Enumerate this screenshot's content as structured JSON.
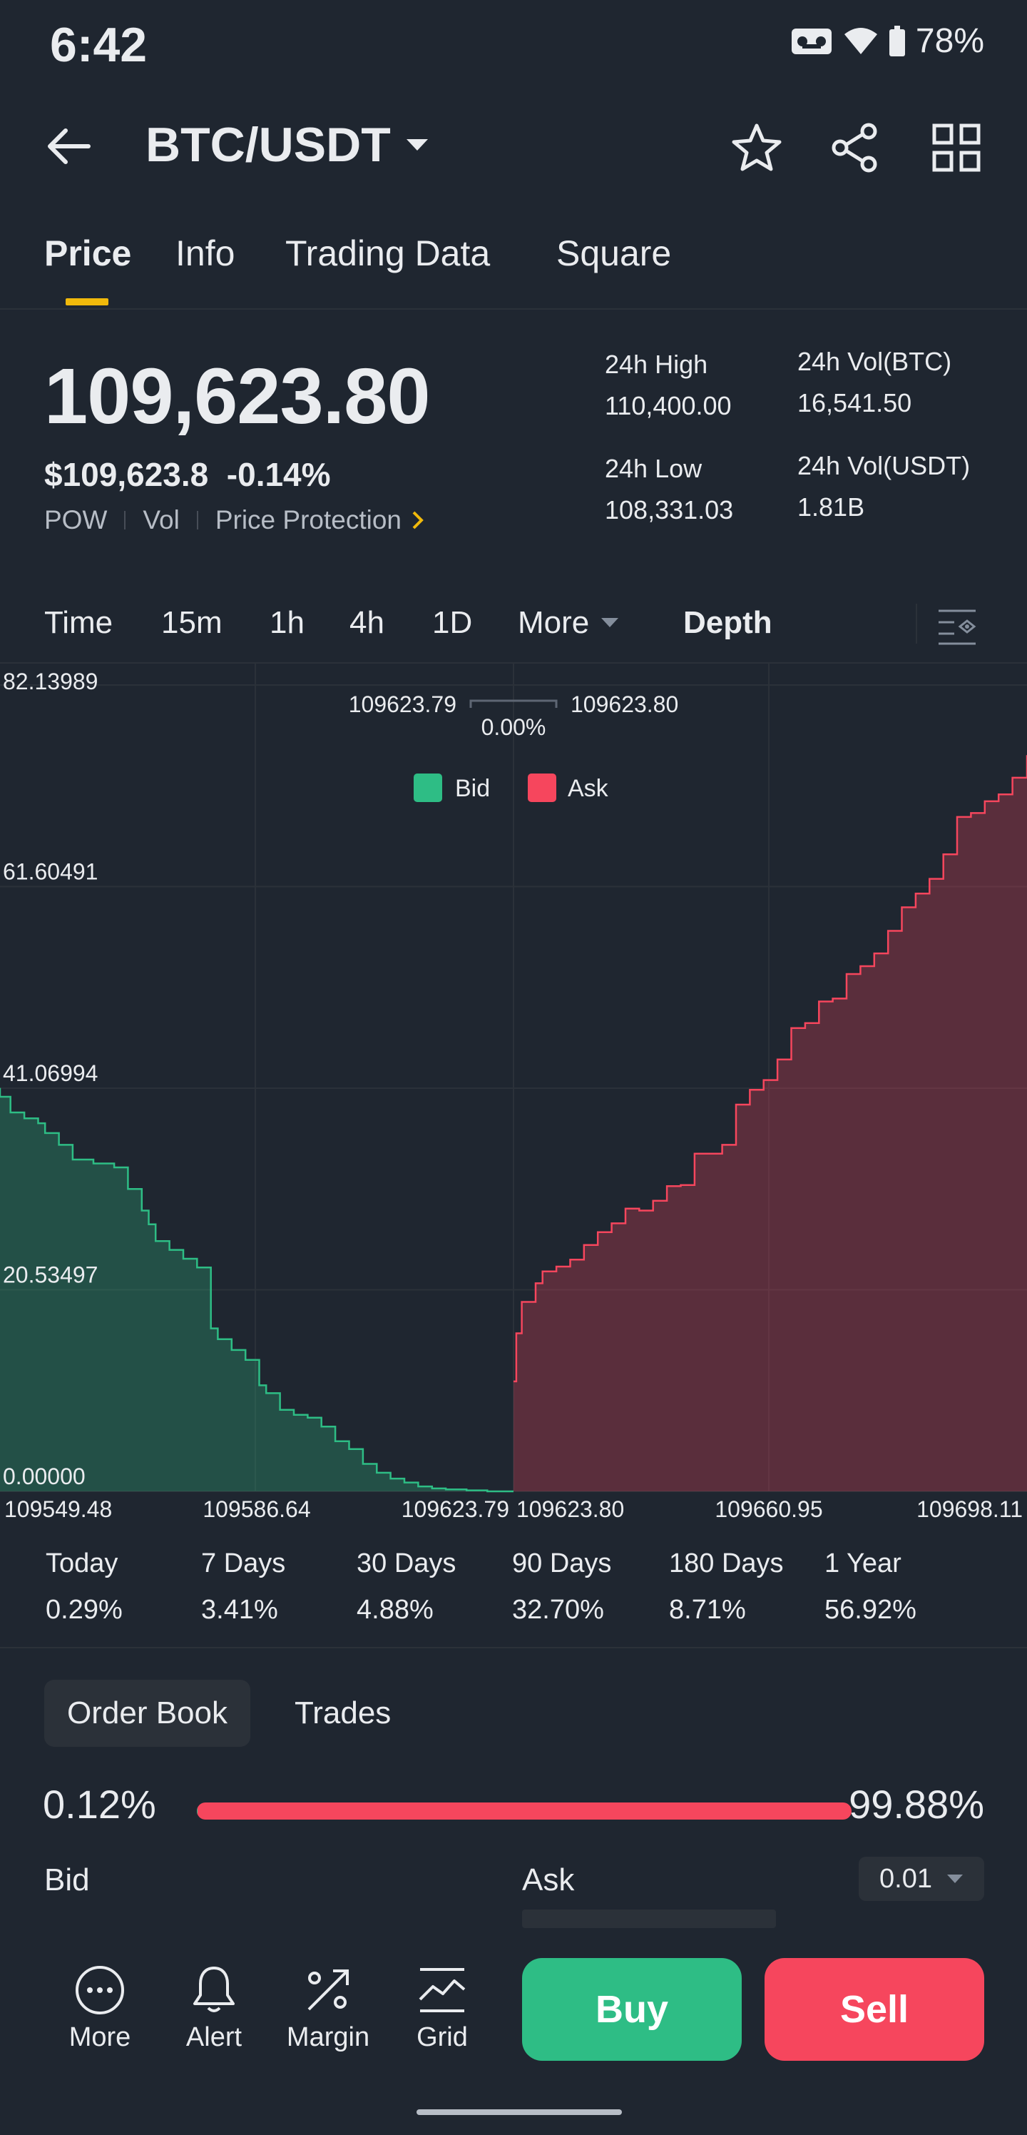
{
  "status_bar": {
    "time": "6:42",
    "battery": "78%"
  },
  "header": {
    "pair": "BTC/USDT"
  },
  "tabs": [
    {
      "label": "Price"
    },
    {
      "label": "Info"
    },
    {
      "label": "Trading Data"
    },
    {
      "label": "Square"
    }
  ],
  "price": {
    "last": "109,623.80",
    "usd": "$109,623.8",
    "change": "-0.14%",
    "tags": [
      "POW",
      "Vol",
      "Price Protection"
    ]
  },
  "stats": {
    "high_label": "24h High",
    "high_value": "110,400.00",
    "low_label": "24h Low",
    "low_value": "108,331.03",
    "vol_btc_label": "24h Vol(BTC)",
    "vol_btc_value": "16,541.50",
    "vol_usdt_label": "24h Vol(USDT)",
    "vol_usdt_value": "1.81B"
  },
  "time_row": {
    "time": "Time",
    "m15": "15m",
    "h1": "1h",
    "h4": "4h",
    "d1": "1D",
    "more": "More",
    "depth": "Depth"
  },
  "chart_data": {
    "type": "area",
    "title": "",
    "y_ticks": [
      "82.13989",
      "61.60491",
      "41.06994",
      "20.53497",
      "0.00000"
    ],
    "ylim": [
      0,
      82.13989
    ],
    "x_ticks": [
      "109549.48",
      "109586.64",
      "109623.79",
      "109623.80",
      "109660.95",
      "109698.11"
    ],
    "mid": {
      "bid_price": "109623.79",
      "spread": "0.00%",
      "ask_price": "109623.80"
    },
    "legend": [
      "Bid",
      "Ask"
    ],
    "colors": {
      "bid": "#2ebd85",
      "ask": "#f6465d"
    },
    "series": [
      {
        "name": "Bid",
        "x": [
          109549.48,
          109551,
          109553,
          109555,
          109556,
          109558,
          109560,
          109563,
          109566,
          109568,
          109570,
          109571,
          109572,
          109574,
          109576,
          109578,
          109580,
          109581,
          109583,
          109585,
          109587,
          109588,
          109590,
          109592,
          109594,
          109596,
          109598,
          109600,
          109602,
          109604,
          109606,
          109608,
          109610,
          109612,
          109614,
          109617,
          109620,
          109623.79
        ],
        "y": [
          41.1,
          40.2,
          38.6,
          38.0,
          37.5,
          36.5,
          35.3,
          33.8,
          33.4,
          33.0,
          30.8,
          28.6,
          27.2,
          25.5,
          24.6,
          23.7,
          22.8,
          16.6,
          15.5,
          14.4,
          13.4,
          10.8,
          10.0,
          8.3,
          7.8,
          7.5,
          6.6,
          5.1,
          4.3,
          2.8,
          1.9,
          1.3,
          0.9,
          0.5,
          0.3,
          0.2,
          0.1,
          0.0
        ]
      },
      {
        "name": "Ask",
        "x": [
          109623.8,
          109624.2,
          109625,
          109627,
          109628,
          109630,
          109632,
          109634,
          109636,
          109638,
          109640,
          109642,
          109644,
          109646,
          109648,
          109650,
          109652,
          109654,
          109656,
          109658,
          109660,
          109662,
          109664,
          109666,
          109668,
          109670,
          109672,
          109674,
          109676,
          109678,
          109680,
          109682,
          109684,
          109686,
          109688,
          109690,
          109692,
          109694,
          109696,
          109698.11
        ],
        "y": [
          11.2,
          16.1,
          19.3,
          21.2,
          22.4,
          22.9,
          23.6,
          25.1,
          26.4,
          27.3,
          28.8,
          28.6,
          29.6,
          31.1,
          31.2,
          34.4,
          34.4,
          35.3,
          39.4,
          40.9,
          41.9,
          44.0,
          47.2,
          47.7,
          49.9,
          50.2,
          52.7,
          53.5,
          54.8,
          57.1,
          59.5,
          60.9,
          62.4,
          64.9,
          68.7,
          69.1,
          70.3,
          71.0,
          72.7,
          75.0
        ]
      }
    ]
  },
  "performance": [
    {
      "label": "Today",
      "value": "0.29%"
    },
    {
      "label": "7 Days",
      "value": "3.41%"
    },
    {
      "label": "30 Days",
      "value": "4.88%"
    },
    {
      "label": "90 Days",
      "value": "32.70%"
    },
    {
      "label": "180 Days",
      "value": "8.71%"
    },
    {
      "label": "1 Year",
      "value": "56.92%"
    }
  ],
  "order_book": {
    "tab_book": "Order Book",
    "tab_trades": "Trades",
    "bid_pct": "0.12%",
    "ask_pct": "99.88%",
    "bid_ratio": 0.0012,
    "bid_label": "Bid",
    "ask_label": "Ask",
    "precision": "0.01"
  },
  "bottom_nav": {
    "more": "More",
    "alert": "Alert",
    "margin": "Margin",
    "grid": "Grid",
    "buy": "Buy",
    "sell": "Sell"
  }
}
